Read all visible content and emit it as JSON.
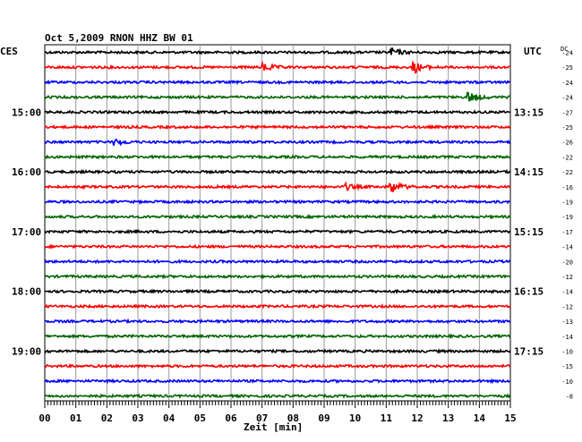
{
  "chart_data": {
    "type": "line",
    "title": "Oct 5,2009   RNON HHZ BW 01",
    "left_label": "CES",
    "right_label": "UTC",
    "dc_label": "DC",
    "xlabel": "Zeit [min]",
    "x_ticks": [
      "00",
      "01",
      "02",
      "03",
      "04",
      "05",
      "06",
      "07",
      "08",
      "09",
      "10",
      "11",
      "12",
      "13",
      "14",
      "15"
    ],
    "xlim": [
      0,
      15
    ],
    "grid": true,
    "trace_colors": [
      "#000000",
      "#ff0000",
      "#0000ff",
      "#006400"
    ],
    "left_hour_labels": [
      {
        "row": 4,
        "text": "15:00"
      },
      {
        "row": 8,
        "text": "16:00"
      },
      {
        "row": 12,
        "text": "17:00"
      },
      {
        "row": 16,
        "text": "18:00"
      },
      {
        "row": 20,
        "text": "19:00"
      }
    ],
    "right_time_labels": [
      {
        "row": 4,
        "text": "13:15"
      },
      {
        "row": 8,
        "text": "14:15"
      },
      {
        "row": 12,
        "text": "15:15"
      },
      {
        "row": 16,
        "text": "16:15"
      },
      {
        "row": 20,
        "text": "17:15"
      }
    ],
    "dc_offsets": [
      -24,
      -25,
      -24,
      -24,
      -27,
      -25,
      -26,
      -22,
      -22,
      -16,
      -19,
      -19,
      -17,
      -14,
      -20,
      -12,
      -14,
      -12,
      -13,
      -14,
      -10,
      -15,
      -10,
      -8
    ],
    "traces": [
      {
        "row": 0,
        "events": [
          {
            "minute": 11.2,
            "amplitude": 4
          }
        ]
      },
      {
        "row": 1,
        "events": [
          {
            "minute": 7.1,
            "amplitude": 4
          },
          {
            "minute": 11.9,
            "amplitude": 6
          }
        ]
      },
      {
        "row": 2,
        "events": []
      },
      {
        "row": 3,
        "events": [
          {
            "minute": 13.7,
            "amplitude": 5
          }
        ]
      },
      {
        "row": 4,
        "events": []
      },
      {
        "row": 5,
        "events": []
      },
      {
        "row": 6,
        "events": [
          {
            "minute": 2.3,
            "amplitude": 3
          }
        ]
      },
      {
        "row": 7,
        "events": []
      },
      {
        "row": 8,
        "events": []
      },
      {
        "row": 9,
        "events": [
          {
            "minute": 9.7,
            "amplitude": 3
          },
          {
            "minute": 11.2,
            "amplitude": 6
          }
        ]
      },
      {
        "row": 10,
        "events": []
      },
      {
        "row": 11,
        "events": []
      },
      {
        "row": 12,
        "events": []
      },
      {
        "row": 13,
        "events": []
      },
      {
        "row": 14,
        "events": []
      },
      {
        "row": 15,
        "events": []
      },
      {
        "row": 16,
        "events": []
      },
      {
        "row": 17,
        "events": []
      },
      {
        "row": 18,
        "events": []
      },
      {
        "row": 19,
        "events": []
      },
      {
        "row": 20,
        "events": []
      },
      {
        "row": 21,
        "events": []
      },
      {
        "row": 22,
        "events": []
      },
      {
        "row": 23,
        "events": []
      }
    ]
  }
}
